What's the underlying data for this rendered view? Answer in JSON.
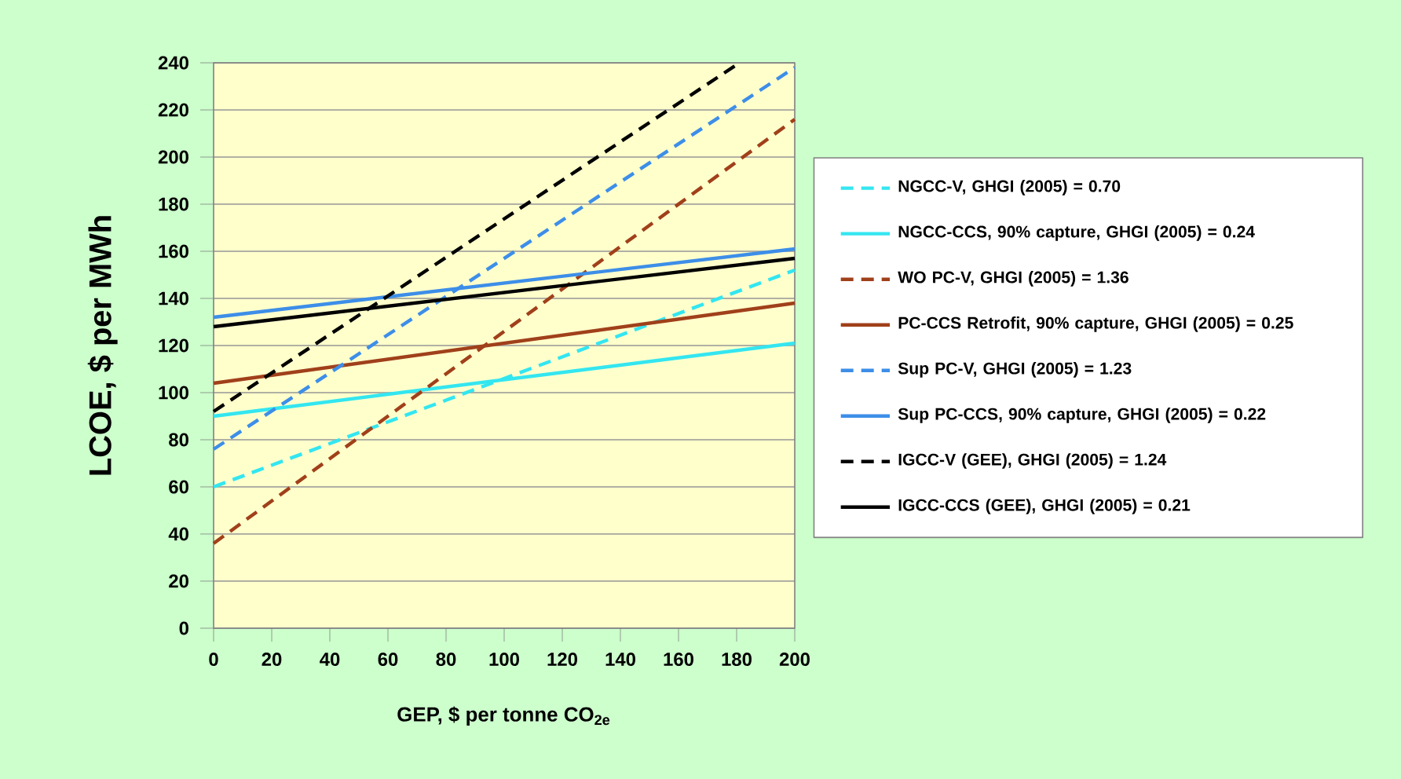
{
  "chart_data": {
    "type": "line",
    "xlabel": "GEP, $ per tonne CO$_{2e}$",
    "ylabel": "LCOE, $ per MWh",
    "series": [
      {
        "name": "NGCC-V, GHGI (2005) = 0.70",
        "color": "#33e6f0",
        "line_style": "dashed",
        "x": [
          0,
          200
        ],
        "values": [
          60,
          152
        ]
      },
      {
        "name": "NGCC-CCS, 90% capture, GHGI (2005) = 0.24",
        "color": "#33e6f0",
        "line_style": "solid",
        "x": [
          0,
          200
        ],
        "values": [
          90,
          121
        ]
      },
      {
        "name": "WO PC-V, GHGI (2005) = 1.36",
        "color": "#a0401a",
        "line_style": "dashed",
        "x": [
          0,
          200
        ],
        "values": [
          36,
          216
        ]
      },
      {
        "name": "PC-CCS Retrofit, 90% capture, GHGI (2005) = 0.25",
        "color": "#a0401a",
        "line_style": "solid",
        "x": [
          0,
          200
        ],
        "values": [
          104,
          138
        ]
      },
      {
        "name": "Sup PC-V, GHGI (2005) = 1.23",
        "color": "#3d8ee8",
        "line_style": "dashed",
        "x": [
          0,
          200
        ],
        "values": [
          76,
          238
        ]
      },
      {
        "name": "Sup PC-CCS, 90% capture, GHGI (2005) = 0.22",
        "color": "#3d8ee8",
        "line_style": "solid",
        "x": [
          0,
          200
        ],
        "values": [
          132,
          161
        ]
      },
      {
        "name": "IGCC-V (GEE), GHGI (2005) = 1.24",
        "color": "#000000",
        "line_style": "dashed",
        "x": [
          0,
          181
        ],
        "values": [
          92,
          240
        ]
      },
      {
        "name": "IGCC-CCS (GEE), GHGI (2005) = 0.21",
        "color": "#000000",
        "line_style": "solid",
        "x": [
          0,
          200
        ],
        "values": [
          128,
          157
        ]
      }
    ],
    "xlim": [
      0,
      200
    ],
    "xticks": [
      0,
      20,
      40,
      60,
      80,
      100,
      120,
      140,
      160,
      180,
      200
    ],
    "ylim": [
      0,
      240
    ],
    "yticks": [
      0,
      20,
      40,
      60,
      80,
      100,
      120,
      140,
      160,
      180,
      200,
      220,
      240
    ],
    "grid": "y",
    "legend": "right",
    "marker": "none"
  }
}
